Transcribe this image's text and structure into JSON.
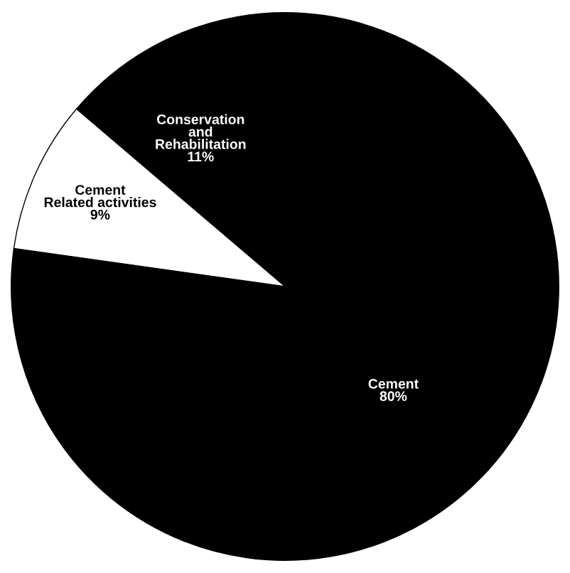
{
  "chart_data": {
    "type": "pie",
    "categories": [
      "Cement",
      "Conservation\nand\nRehabilitation",
      "Cement\nRelated activities"
    ],
    "values": [
      80,
      11,
      9
    ],
    "value_labels": [
      "80%",
      "11%",
      "9%"
    ],
    "colors": [
      "#000000",
      "#000000",
      "#ffffff"
    ]
  }
}
